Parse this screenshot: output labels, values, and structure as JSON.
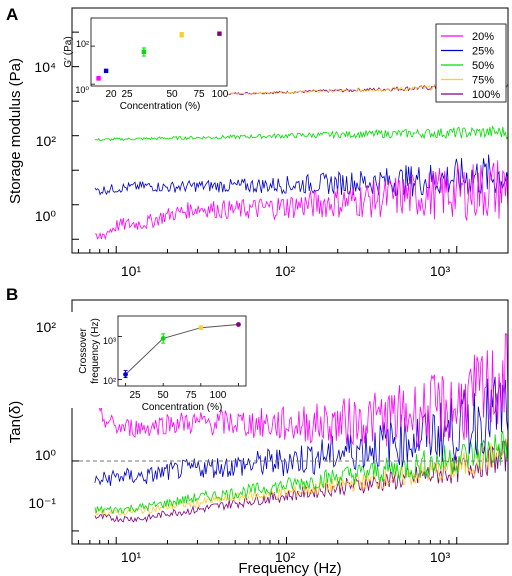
{
  "figure": {
    "panel_labels": [
      "A",
      "B"
    ],
    "panel_a": {
      "ylabel": "Storage modulus (Pa)",
      "legend": [
        "20%",
        "25%",
        "50%",
        "75%",
        "100%"
      ],
      "y_ticks": [
        "10⁰",
        "10²",
        "10⁴"
      ],
      "x_ticks": [
        "10¹",
        "10²",
        "10³"
      ],
      "inset": {
        "xlabel": "Concentration (%)",
        "ylabel": "G′ (Pa)",
        "x_ticks": [
          "20",
          "25",
          "50",
          "75",
          "100"
        ],
        "y_ticks": [
          "10⁰",
          "10²"
        ]
      }
    },
    "panel_b": {
      "ylabel": "Tan(δ)",
      "xlabel": "Frequency (Hz)",
      "y_ticks": [
        "10⁻¹",
        "10⁰",
        "10²"
      ],
      "x_ticks": [
        "10¹",
        "10²",
        "10³"
      ],
      "inset": {
        "xlabel": "Concentration (%)",
        "ylabel_line1": "Crossover",
        "ylabel_line2": "frequency (Hz)",
        "x_ticks": [
          "25",
          "50",
          "75",
          "100"
        ],
        "y_ticks": [
          "10²",
          "10³"
        ]
      }
    }
  },
  "colors": {
    "20%": "#ff00ff",
    "25%": "#0000cc",
    "50%": "#00dd00",
    "75%": "#ffcc33",
    "100%": "#800080"
  },
  "chart_data": [
    {
      "type": "line",
      "panel": "A",
      "xlabel": "",
      "ylabel": "Storage modulus (Pa)",
      "x_scale": "log",
      "y_scale": "log",
      "xlim": [
        5.5,
        2000
      ],
      "ylim": [
        0.04,
        500000
      ],
      "x": [
        7.5,
        10,
        15,
        20,
        30,
        50,
        100,
        200,
        500,
        1000,
        1500,
        2000
      ],
      "series": [
        {
          "name": "20%",
          "color": "#ff00ff",
          "noise": 0.5,
          "values": [
            0.09,
            0.25,
            0.3,
            0.5,
            0.8,
            0.7,
            0.9,
            1.2,
            1.8,
            2.3,
            2.8,
            3
          ]
        },
        {
          "name": "25%",
          "color": "#0000cc",
          "noise": 0.35,
          "values": [
            2.5,
            3,
            3.5,
            3.2,
            3.5,
            3.5,
            3.8,
            4.2,
            5,
            6,
            6.8,
            7
          ]
        },
        {
          "name": "50%",
          "color": "#00dd00",
          "noise": 0.1,
          "values": [
            75,
            79,
            82,
            85,
            88,
            92,
            100,
            108,
            115,
            122,
            125,
            128
          ]
        },
        {
          "name": "75%",
          "color": "#ffcc33",
          "noise": 0.05,
          "values": [
            1300,
            1350,
            1420,
            1480,
            1550,
            1650,
            1800,
            2000,
            2300,
            2600,
            2800,
            3000
          ]
        },
        {
          "name": "100%",
          "color": "#800080",
          "noise": 0.05,
          "values": [
            1320,
            1370,
            1440,
            1500,
            1570,
            1670,
            1820,
            2020,
            2330,
            2630,
            2830,
            3030
          ]
        }
      ],
      "legend_position": "top-right",
      "inset": {
        "type": "scatter",
        "xlabel": "Concentration (%)",
        "ylabel": "G′ (Pa)",
        "y_scale": "log",
        "xlim": [
          15,
          105
        ],
        "ylim": [
          0.8,
          3000
        ],
        "points": [
          {
            "name": "20%",
            "x": 20,
            "y": 2,
            "err_low": 1.7,
            "err_high": 2.5
          },
          {
            "name": "25%",
            "x": 25,
            "y": 5
          },
          {
            "name": "50%",
            "x": 50,
            "y": 50,
            "err_low": 30,
            "err_high": 80
          },
          {
            "name": "75%",
            "x": 75,
            "y": 400,
            "err_low": 300,
            "err_high": 520
          },
          {
            "name": "100%",
            "x": 100,
            "y": 450
          }
        ]
      }
    },
    {
      "type": "line",
      "panel": "B",
      "xlabel": "Frequency (Hz)",
      "ylabel": "Tan(δ)",
      "x_scale": "log",
      "y_scale": "log",
      "xlim": [
        5.5,
        2000
      ],
      "ylim": [
        0.065,
        200
      ],
      "reference_line": {
        "y": 1,
        "style": "dashed"
      },
      "x": [
        7.5,
        10,
        15,
        20,
        30,
        50,
        100,
        200,
        500,
        1000,
        1500,
        2000
      ],
      "series": [
        {
          "name": "20%",
          "color": "#ff00ff",
          "noise": 0.35,
          "values": [
            5,
            3,
            3,
            3.5,
            3.5,
            3.5,
            3.3,
            3.5,
            4.5,
            6,
            10,
            15
          ]
        },
        {
          "name": "25%",
          "color": "#0000cc",
          "noise": 0.3,
          "values": [
            0.5,
            0.6,
            0.6,
            0.7,
            0.8,
            0.85,
            1,
            1.3,
            2,
            3,
            4.5,
            6
          ]
        },
        {
          "name": "50%",
          "color": "#00dd00",
          "noise": 0.15,
          "values": [
            0.2,
            0.2,
            0.22,
            0.25,
            0.3,
            0.35,
            0.45,
            0.6,
            0.8,
            1.1,
            1.4,
            1.6
          ]
        },
        {
          "name": "75%",
          "color": "#ffcc33",
          "noise": 0.12,
          "values": [
            0.19,
            0.18,
            0.2,
            0.22,
            0.25,
            0.3,
            0.35,
            0.45,
            0.6,
            0.8,
            1.1,
            1.3
          ]
        },
        {
          "name": "100%",
          "color": "#800080",
          "noise": 0.12,
          "values": [
            0.16,
            0.15,
            0.15,
            0.18,
            0.2,
            0.25,
            0.32,
            0.42,
            0.55,
            0.75,
            1,
            1.2
          ]
        }
      ],
      "inset": {
        "type": "line",
        "xlabel": "Concentration (%)",
        "ylabel": "Crossover frequency (Hz)",
        "y_scale": "log",
        "xlim": [
          20,
          105
        ],
        "ylim": [
          70,
          3000
        ],
        "points": [
          {
            "name": "25%",
            "x": 25,
            "y": 130,
            "err_low": 110,
            "err_high": 160
          },
          {
            "name": "50%",
            "x": 50,
            "y": 900,
            "err_low": 700,
            "err_high": 1150
          },
          {
            "name": "75%",
            "x": 75,
            "y": 1600,
            "err_low": 1450,
            "err_high": 1750
          },
          {
            "name": "100%",
            "x": 100,
            "y": 1900
          }
        ]
      }
    }
  ]
}
